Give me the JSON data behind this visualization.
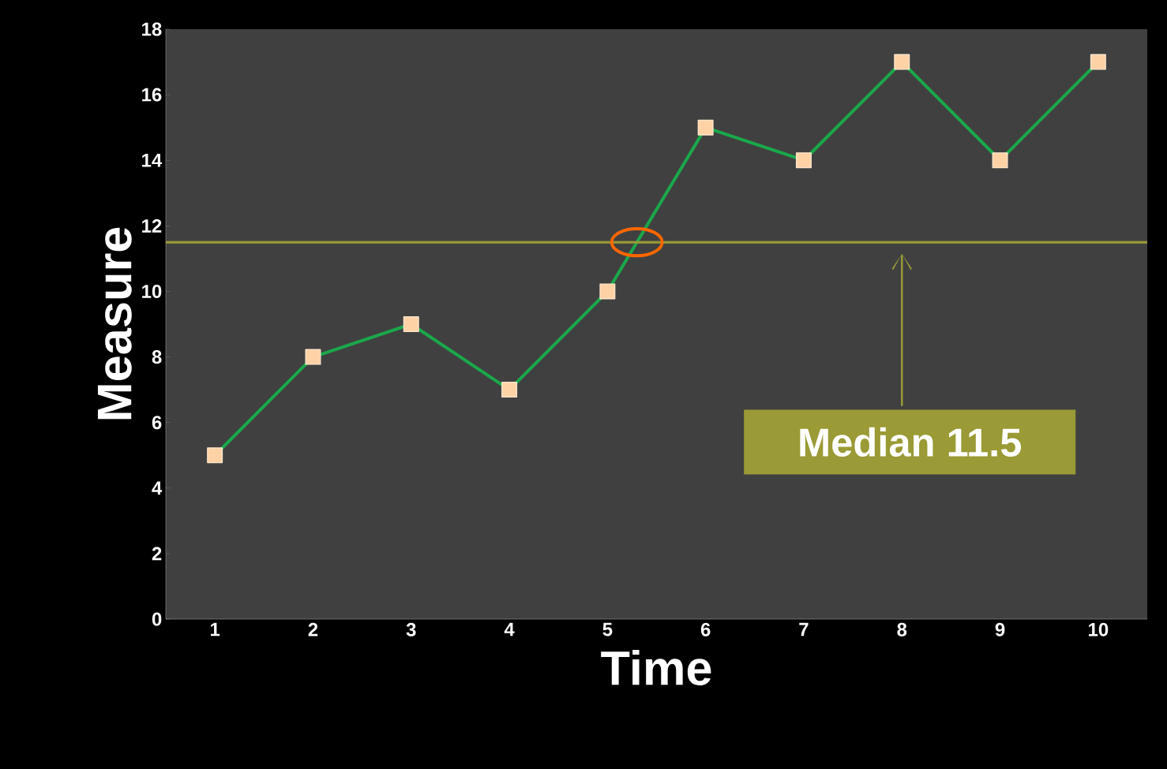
{
  "chart_data": {
    "type": "line",
    "xlabel": "Time",
    "ylabel": "Measure",
    "categories": [
      "1",
      "2",
      "3",
      "4",
      "5",
      "6",
      "7",
      "8",
      "9",
      "10"
    ],
    "series": [
      {
        "color": "#1aa84a",
        "values": [
          5,
          8,
          9,
          7,
          10,
          15,
          14,
          17,
          14,
          17
        ]
      }
    ],
    "ylim": [
      0,
      18
    ],
    "yticks": [
      0,
      2,
      4,
      6,
      8,
      10,
      12,
      14,
      16,
      18
    ],
    "marker": "square",
    "line_style": "solid",
    "grid": false,
    "annotations": [
      "Median 11.5"
    ],
    "ref_lines": [
      {
        "axis": "y",
        "value": 11.5,
        "color": "#9a9a36"
      }
    ]
  }
}
